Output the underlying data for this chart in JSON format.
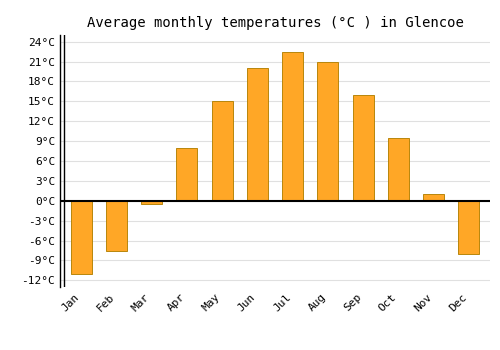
{
  "months": [
    "Jan",
    "Feb",
    "Mar",
    "Apr",
    "May",
    "Jun",
    "Jul",
    "Aug",
    "Sep",
    "Oct",
    "Nov",
    "Dec"
  ],
  "values": [
    -11,
    -7.5,
    -0.5,
    8,
    15,
    20,
    22.5,
    21,
    16,
    9.5,
    1,
    -8
  ],
  "bar_color_face": "#FFA726",
  "bar_color_edge": "#B8860B",
  "title": "Average monthly temperatures (°C ) in Glencoe",
  "ylim": [
    -13,
    25
  ],
  "yticks": [
    -12,
    -9,
    -6,
    -3,
    0,
    3,
    6,
    9,
    12,
    15,
    18,
    21,
    24
  ],
  "ytick_labels": [
    "-12°C",
    "-9°C",
    "-6°C",
    "-3°C",
    "0°C",
    "3°C",
    "6°C",
    "9°C",
    "12°C",
    "15°C",
    "18°C",
    "21°C",
    "24°C"
  ],
  "background_color": "#ffffff",
  "grid_color": "#e0e0e0",
  "title_fontsize": 10,
  "tick_fontsize": 8
}
